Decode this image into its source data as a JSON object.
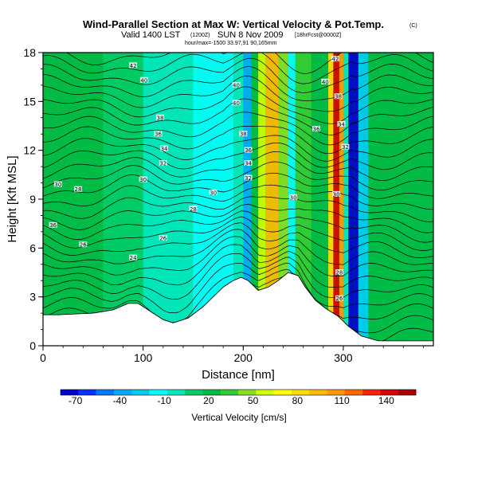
{
  "header": {
    "title": "Wind-Parallel Section at Max W: Vertical Velocity & Pot.Temp.",
    "title_mark": "(C)",
    "valid_line_prefix": "Valid 1400 LST",
    "valid_line_paren": "(1200Z)",
    "valid_line_date": "SUN 8 Nov 2009",
    "valid_line_suffix": "[18hrFcst@0000Z]",
    "small_line": "hour/max=-1500 33.97,91 90,165mm"
  },
  "chart_data": {
    "type": "heatmap",
    "title": "Wind-Parallel Section at Max W: Vertical Velocity & Pot.Temp.",
    "xlabel": "Distance [nm]",
    "ylabel": "Height [Kft MSL]",
    "xlim": [
      0,
      390
    ],
    "ylim": [
      0,
      18
    ],
    "x_ticks": [
      0,
      100,
      200,
      300
    ],
    "y_ticks": [
      0,
      3,
      6,
      9,
      12,
      15,
      18
    ],
    "grid": false,
    "terrain_profile": {
      "x": [
        0,
        15,
        50,
        70,
        85,
        95,
        110,
        120,
        130,
        145,
        160,
        170,
        180,
        190,
        198,
        205,
        215,
        225,
        235,
        245,
        255,
        262,
        272,
        282,
        290,
        295,
        305,
        318,
        335,
        360,
        390
      ],
      "y": [
        1.9,
        1.9,
        2.0,
        2.2,
        2.6,
        2.6,
        2.0,
        1.6,
        1.4,
        1.7,
        2.4,
        3.0,
        3.6,
        4.0,
        4.2,
        4.0,
        3.4,
        3.6,
        4.0,
        4.5,
        4.3,
        3.6,
        2.8,
        2.3,
        2.0,
        1.8,
        1.2,
        0.6,
        0.3,
        0.3,
        0.3
      ]
    },
    "velocity_bands": [
      {
        "x0": 0,
        "x1": 60,
        "value": 20
      },
      {
        "x0": 60,
        "x1": 100,
        "value": 10
      },
      {
        "x0": 100,
        "x1": 150,
        "value": 0
      },
      {
        "x0": 150,
        "x1": 190,
        "value": -10
      },
      {
        "x0": 190,
        "x1": 200,
        "value": 0
      },
      {
        "x0": 200,
        "x1": 208,
        "value": -40
      },
      {
        "x0": 208,
        "x1": 215,
        "value": 20
      },
      {
        "x0": 215,
        "x1": 222,
        "value": 60
      },
      {
        "x0": 222,
        "x1": 235,
        "value": 90
      },
      {
        "x0": 235,
        "x1": 245,
        "value": 50
      },
      {
        "x0": 245,
        "x1": 252,
        "value": -20
      },
      {
        "x0": 252,
        "x1": 268,
        "value": 30
      },
      {
        "x0": 268,
        "x1": 285,
        "value": 20
      },
      {
        "x0": 285,
        "x1": 290,
        "value": 80
      },
      {
        "x0": 290,
        "x1": 296,
        "value": 140
      },
      {
        "x0": 296,
        "x1": 300,
        "value": 100
      },
      {
        "x0": 300,
        "x1": 305,
        "value": 0
      },
      {
        "x0": 305,
        "x1": 315,
        "value": -70
      },
      {
        "x0": 315,
        "x1": 325,
        "value": -30
      },
      {
        "x0": 325,
        "x1": 390,
        "value": 20
      }
    ],
    "contour_labels": [
      {
        "x": 10,
        "y": 7.4,
        "text": "36"
      },
      {
        "x": 40,
        "y": 6.2,
        "text": "26"
      },
      {
        "x": 90,
        "y": 5.4,
        "text": "24"
      },
      {
        "x": 120,
        "y": 6.6,
        "text": "26"
      },
      {
        "x": 150,
        "y": 8.4,
        "text": "28"
      },
      {
        "x": 170,
        "y": 9.4,
        "text": "30"
      },
      {
        "x": 35,
        "y": 9.6,
        "text": "28"
      },
      {
        "x": 15,
        "y": 9.9,
        "text": "30"
      },
      {
        "x": 100,
        "y": 10.2,
        "text": "30"
      },
      {
        "x": 120,
        "y": 11.2,
        "text": "32"
      },
      {
        "x": 121,
        "y": 12.1,
        "text": "34"
      },
      {
        "x": 115,
        "y": 13.0,
        "text": "36"
      },
      {
        "x": 117,
        "y": 14.0,
        "text": "38"
      },
      {
        "x": 101,
        "y": 16.3,
        "text": "40"
      },
      {
        "x": 90,
        "y": 17.2,
        "text": "42"
      },
      {
        "x": 193,
        "y": 16.0,
        "text": "40"
      },
      {
        "x": 193,
        "y": 14.9,
        "text": "40"
      },
      {
        "x": 200,
        "y": 13.0,
        "text": "38"
      },
      {
        "x": 205,
        "y": 12.0,
        "text": "36"
      },
      {
        "x": 205,
        "y": 11.2,
        "text": "34"
      },
      {
        "x": 205,
        "y": 10.3,
        "text": "32"
      },
      {
        "x": 250,
        "y": 9.1,
        "text": "30"
      },
      {
        "x": 273,
        "y": 13.3,
        "text": "36"
      },
      {
        "x": 282,
        "y": 16.2,
        "text": "40"
      },
      {
        "x": 295,
        "y": 15.3,
        "text": "38"
      },
      {
        "x": 298,
        "y": 13.6,
        "text": "34"
      },
      {
        "x": 302,
        "y": 12.2,
        "text": "32"
      },
      {
        "x": 293,
        "y": 9.3,
        "text": "30"
      },
      {
        "x": 296,
        "y": 4.5,
        "text": "28"
      },
      {
        "x": 296,
        "y": 2.9,
        "text": "26"
      },
      {
        "x": 292,
        "y": 17.6,
        "text": "42"
      }
    ],
    "colorbar": {
      "label": "Vertical Velocity [cm/s]",
      "ticks": [
        -70,
        -40,
        -10,
        20,
        50,
        80,
        110,
        140
      ],
      "min": -80,
      "max": 160,
      "colors": [
        "#0000cc",
        "#0033ff",
        "#0077ff",
        "#00aaff",
        "#00ccee",
        "#00ffff",
        "#00e8c0",
        "#00cc66",
        "#00bb44",
        "#33cc33",
        "#88dd22",
        "#ccff00",
        "#ffff00",
        "#ffdd00",
        "#ffbb00",
        "#ff9900",
        "#ff6600",
        "#ff2200",
        "#dd0000",
        "#aa0000"
      ]
    }
  }
}
